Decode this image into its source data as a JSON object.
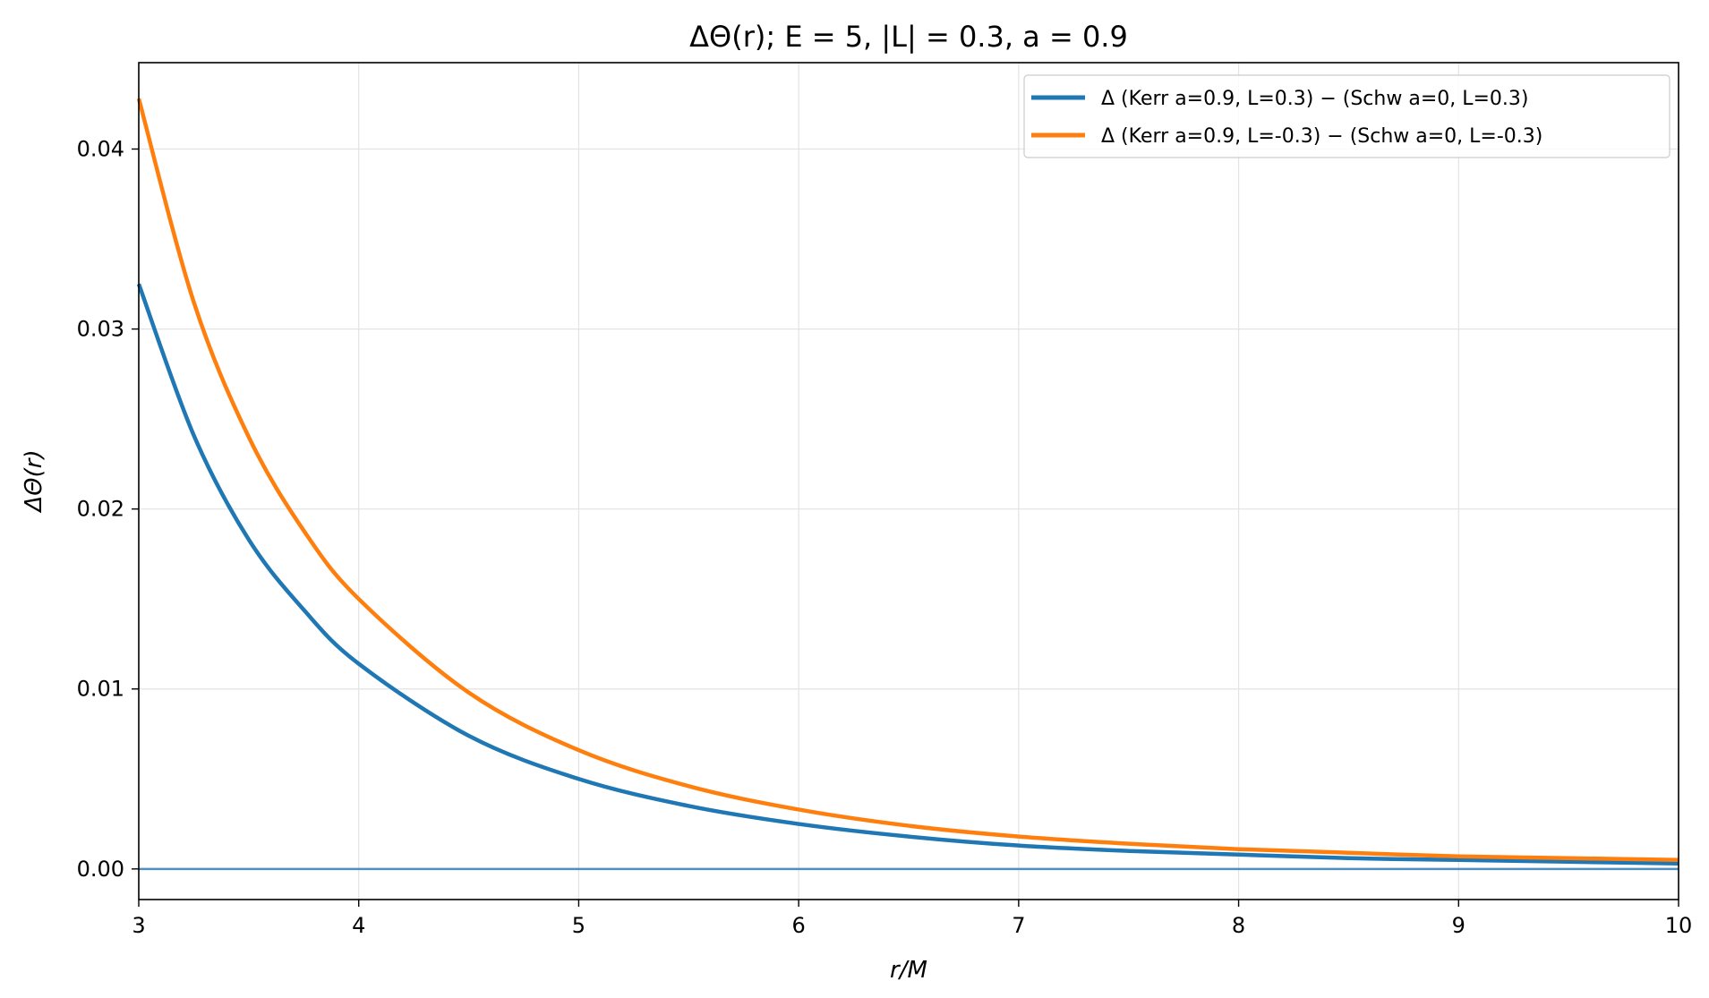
{
  "chart_data": {
    "type": "line",
    "title": "ΔΘ(r);  E = 5,  |L| = 0.3,  a = 0.9",
    "xlabel": "r/M",
    "ylabel": "ΔΘ(r)",
    "xlim": [
      3,
      10
    ],
    "ylim": [
      -0.0017,
      0.0448
    ],
    "x_ticks": [
      3,
      4,
      5,
      6,
      7,
      8,
      9,
      10
    ],
    "x_tick_labels": [
      "3",
      "4",
      "5",
      "6",
      "7",
      "8",
      "9",
      "10"
    ],
    "y_ticks": [
      0.0,
      0.01,
      0.02,
      0.03,
      0.04
    ],
    "y_tick_labels": [
      "0.00",
      "0.01",
      "0.02",
      "0.03",
      "0.04"
    ],
    "grid": true,
    "legend_position": "top-right",
    "reference_line": {
      "y": 0,
      "color": "#4f8fbf"
    },
    "series": [
      {
        "name": "Δ (Kerr a=0.9, L=0.3) − (Schw a=0, L=0.3)",
        "color": "#1f77b4",
        "x": [
          3.0,
          3.25,
          3.5,
          3.75,
          4.0,
          4.5,
          5.0,
          5.5,
          6.0,
          6.5,
          7.0,
          7.5,
          8.0,
          8.5,
          9.0,
          9.5,
          10.0
        ],
        "y": [
          0.0325,
          0.0241,
          0.0183,
          0.0144,
          0.0114,
          0.0074,
          0.005,
          0.0035,
          0.0025,
          0.0018,
          0.0013,
          0.001,
          0.0008,
          0.0006,
          0.0005,
          0.0004,
          0.0003
        ]
      },
      {
        "name": "Δ (Kerr a=0.9, L=-0.3) − (Schw a=0, L=-0.3)",
        "color": "#ff7f0e",
        "x": [
          3.0,
          3.25,
          3.5,
          3.75,
          4.0,
          4.5,
          5.0,
          5.5,
          6.0,
          6.5,
          7.0,
          7.5,
          8.0,
          8.5,
          9.0,
          9.5,
          10.0
        ],
        "y": [
          0.0428,
          0.0315,
          0.024,
          0.0188,
          0.015,
          0.0098,
          0.0066,
          0.0046,
          0.0033,
          0.0024,
          0.0018,
          0.0014,
          0.0011,
          0.0009,
          0.0007,
          0.0006,
          0.0005
        ]
      }
    ]
  }
}
